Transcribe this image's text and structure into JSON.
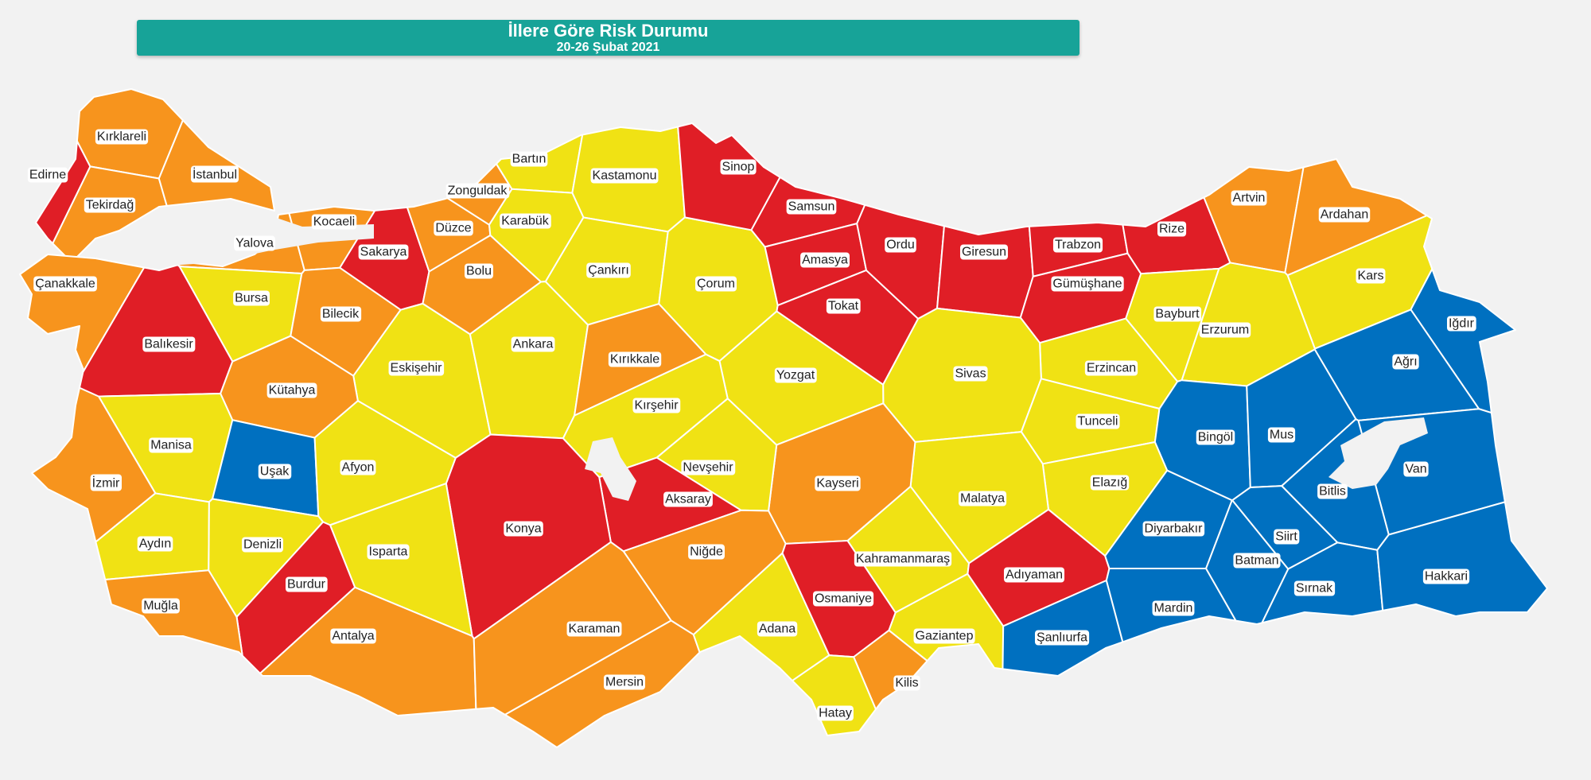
{
  "header": {
    "title": "İllere Göre Risk Durumu",
    "subtitle": "20-26 Şubat 2021"
  },
  "risk_colors": {
    "very_high": "#e01e26",
    "high": "#f7941d",
    "medium": "#f0e214",
    "low": "#0070c0"
  },
  "provinces": [
    {
      "name": "Edirne",
      "risk": "very_high"
    },
    {
      "name": "Kırklareli",
      "risk": "high"
    },
    {
      "name": "Tekirdağ",
      "risk": "high"
    },
    {
      "name": "İstanbul",
      "risk": "high"
    },
    {
      "name": "Yalova",
      "risk": "high"
    },
    {
      "name": "Kocaeli",
      "risk": "high"
    },
    {
      "name": "Sakarya",
      "risk": "very_high"
    },
    {
      "name": "Düzce",
      "risk": "high"
    },
    {
      "name": "Zonguldak",
      "risk": "high"
    },
    {
      "name": "Bartın",
      "risk": "medium"
    },
    {
      "name": "Kastamonu",
      "risk": "medium"
    },
    {
      "name": "Karabük",
      "risk": "medium"
    },
    {
      "name": "Bolu",
      "risk": "high"
    },
    {
      "name": "Çanakkale",
      "risk": "high"
    },
    {
      "name": "Bursa",
      "risk": "medium"
    },
    {
      "name": "Bilecik",
      "risk": "high"
    },
    {
      "name": "Balıkesir",
      "risk": "very_high"
    },
    {
      "name": "Eskişehir",
      "risk": "medium"
    },
    {
      "name": "Ankara",
      "risk": "medium"
    },
    {
      "name": "Çankırı",
      "risk": "medium"
    },
    {
      "name": "Çorum",
      "risk": "medium"
    },
    {
      "name": "Sinop",
      "risk": "very_high"
    },
    {
      "name": "Samsun",
      "risk": "very_high"
    },
    {
      "name": "Amasya",
      "risk": "very_high"
    },
    {
      "name": "Tokat",
      "risk": "very_high"
    },
    {
      "name": "Ordu",
      "risk": "very_high"
    },
    {
      "name": "Giresun",
      "risk": "very_high"
    },
    {
      "name": "Trabzon",
      "risk": "very_high"
    },
    {
      "name": "Rize",
      "risk": "very_high"
    },
    {
      "name": "Gümüşhane",
      "risk": "very_high"
    },
    {
      "name": "Artvin",
      "risk": "high"
    },
    {
      "name": "Ardahan",
      "risk": "high"
    },
    {
      "name": "Kars",
      "risk": "medium"
    },
    {
      "name": "Bayburt",
      "risk": "medium"
    },
    {
      "name": "Erzurum",
      "risk": "medium"
    },
    {
      "name": "Iğdır",
      "risk": "low"
    },
    {
      "name": "Ağrı",
      "risk": "low"
    },
    {
      "name": "Erzincan",
      "risk": "medium"
    },
    {
      "name": "Sivas",
      "risk": "medium"
    },
    {
      "name": "Yozgat",
      "risk": "medium"
    },
    {
      "name": "Kırıkkale",
      "risk": "high"
    },
    {
      "name": "Kırşehir",
      "risk": "medium"
    },
    {
      "name": "Tunceli",
      "risk": "medium"
    },
    {
      "name": "Bingöl",
      "risk": "low"
    },
    {
      "name": "Mus",
      "risk": "low"
    },
    {
      "name": "Van",
      "risk": "low"
    },
    {
      "name": "Bitlis",
      "risk": "low"
    },
    {
      "name": "Elazığ",
      "risk": "medium"
    },
    {
      "name": "Malatya",
      "risk": "medium"
    },
    {
      "name": "Kayseri",
      "risk": "high"
    },
    {
      "name": "Nevşehir",
      "risk": "medium"
    },
    {
      "name": "Aksaray",
      "risk": "very_high"
    },
    {
      "name": "Niğde",
      "risk": "high"
    },
    {
      "name": "Konya",
      "risk": "very_high"
    },
    {
      "name": "Kütahya",
      "risk": "high"
    },
    {
      "name": "Manisa",
      "risk": "medium"
    },
    {
      "name": "Uşak",
      "risk": "low"
    },
    {
      "name": "Afyon",
      "risk": "medium"
    },
    {
      "name": "İzmir",
      "risk": "high"
    },
    {
      "name": "Aydın",
      "risk": "medium"
    },
    {
      "name": "Denizli",
      "risk": "medium"
    },
    {
      "name": "Isparta",
      "risk": "medium"
    },
    {
      "name": "Burdur",
      "risk": "very_high"
    },
    {
      "name": "Muğla",
      "risk": "high"
    },
    {
      "name": "Antalya",
      "risk": "high"
    },
    {
      "name": "Karaman",
      "risk": "high"
    },
    {
      "name": "Mersin",
      "risk": "high"
    },
    {
      "name": "Adana",
      "risk": "medium"
    },
    {
      "name": "Osmaniye",
      "risk": "very_high"
    },
    {
      "name": "Kahramanmaraş",
      "risk": "medium"
    },
    {
      "name": "Gaziantep",
      "risk": "medium"
    },
    {
      "name": "Kilis",
      "risk": "high"
    },
    {
      "name": "Hatay",
      "risk": "medium"
    },
    {
      "name": "Adıyaman",
      "risk": "very_high"
    },
    {
      "name": "Şanlıurfa",
      "risk": "low"
    },
    {
      "name": "Diyarbakır",
      "risk": "low"
    },
    {
      "name": "Mardin",
      "risk": "low"
    },
    {
      "name": "Batman",
      "risk": "low"
    },
    {
      "name": "Siirt",
      "risk": "low"
    },
    {
      "name": "Sırnak",
      "risk": "low"
    },
    {
      "name": "Hakkari",
      "risk": "low"
    }
  ]
}
